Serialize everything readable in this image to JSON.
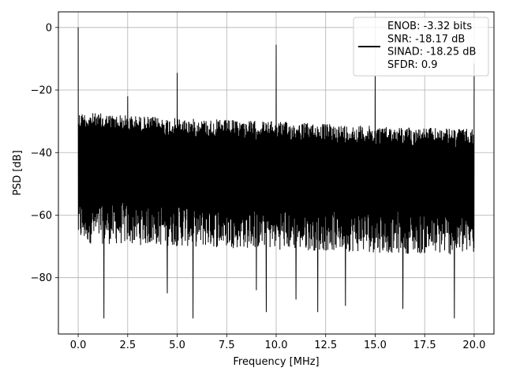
{
  "chart_data": {
    "type": "line",
    "title": "",
    "xlabel": "Frequency [MHz]",
    "ylabel": "PSD [dB]",
    "xlim": [
      -1.0,
      21.0
    ],
    "ylim": [
      -98,
      5
    ],
    "xticks": [
      0.0,
      2.5,
      5.0,
      7.5,
      10.0,
      12.5,
      15.0,
      17.5,
      20.0
    ],
    "xtick_labels": [
      "0.0",
      "2.5",
      "5.0",
      "7.5",
      "10.0",
      "12.5",
      "15.0",
      "17.5",
      "20.0"
    ],
    "yticks": [
      0,
      -20,
      -40,
      -60,
      -80
    ],
    "ytick_labels": [
      "0",
      "−20",
      "−40",
      "−60",
      "−80"
    ],
    "grid": true,
    "legend": {
      "placement": "top-right",
      "entries": [
        "ENOB: -3.32 bits",
        "SNR: -18.17 dB",
        "SINAD: -18.25 dB",
        "SFDR: 0.9"
      ]
    },
    "series": [
      {
        "color": "#000000",
        "noise_floor_upper": [
          [
            0,
            -27
          ],
          [
            5,
            -29
          ],
          [
            10,
            -30
          ],
          [
            15,
            -31.5
          ],
          [
            20,
            -32.5
          ]
        ],
        "noise_floor_lower": [
          [
            0,
            -62
          ],
          [
            20,
            -66
          ]
        ],
        "spurs": [
          {
            "x": 0.0,
            "y": 0.0
          },
          {
            "x": 2.5,
            "y": -22
          },
          {
            "x": 5.0,
            "y": -14.5
          },
          {
            "x": 10.0,
            "y": -5.5
          },
          {
            "x": 15.0,
            "y": -15.5
          },
          {
            "x": 20.0,
            "y": -11.5
          }
        ],
        "deep_nulls": [
          {
            "x": 1.3,
            "y": -93
          },
          {
            "x": 4.5,
            "y": -85
          },
          {
            "x": 5.8,
            "y": -93
          },
          {
            "x": 9.0,
            "y": -84
          },
          {
            "x": 9.5,
            "y": -91
          },
          {
            "x": 11.0,
            "y": -87
          },
          {
            "x": 12.1,
            "y": -91
          },
          {
            "x": 13.5,
            "y": -89
          },
          {
            "x": 16.4,
            "y": -90
          },
          {
            "x": 19.0,
            "y": -93
          }
        ]
      }
    ]
  }
}
